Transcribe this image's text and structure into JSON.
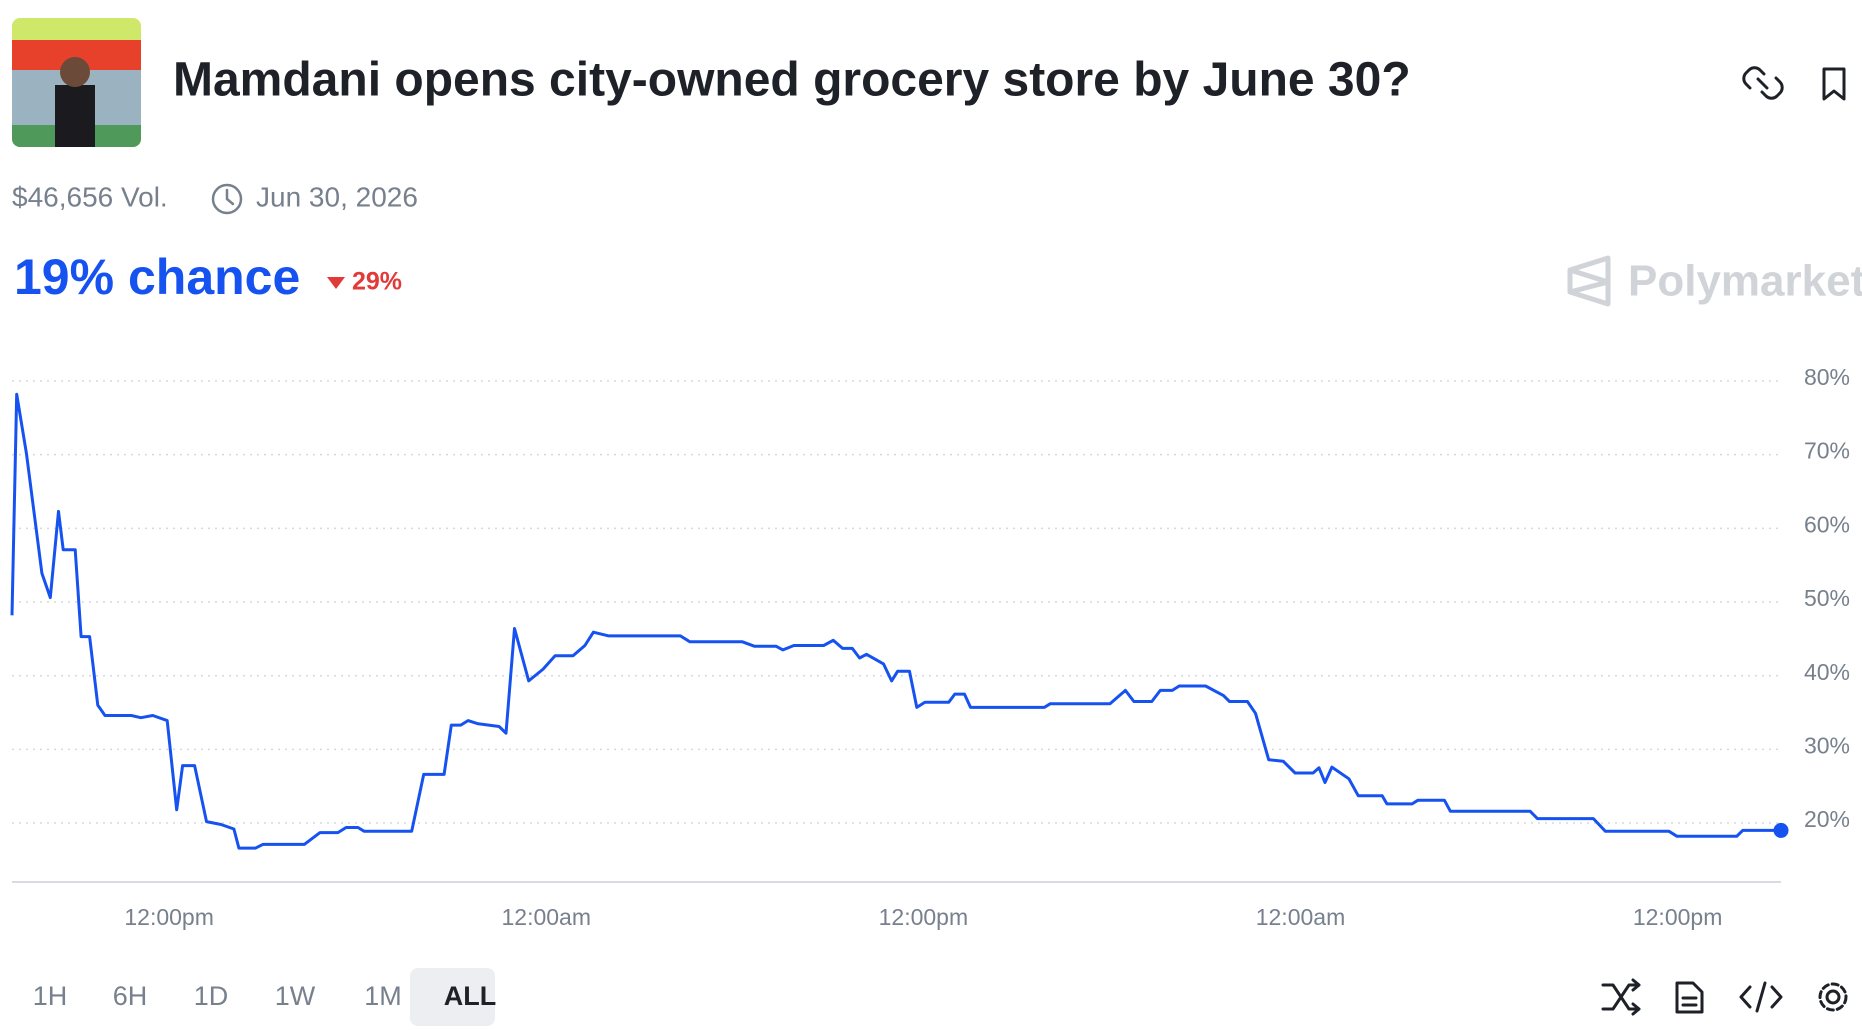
{
  "header": {
    "title": "Mamdani opens city-owned grocery store by June 30?",
    "volume": "$46,656 Vol.",
    "end_date": "Jun 30, 2026"
  },
  "headline": {
    "chance": "19% chance",
    "change": "29%"
  },
  "brand": "Polymarket",
  "ranges": [
    "1H",
    "6H",
    "1D",
    "1W",
    "1M",
    "ALL"
  ],
  "selected_range": "ALL",
  "chart_data": {
    "type": "line",
    "color": "#1652f0",
    "x": [
      7.0,
      7.15,
      7.46,
      7.95,
      8.22,
      8.48,
      8.63,
      9.01,
      9.2,
      9.47,
      9.73,
      9.96,
      10.8,
      11.1,
      11.48,
      11.94,
      12.24,
      12.43,
      12.81,
      13.19,
      13.65,
      14.06,
      14.22,
      14.75,
      14.98,
      16.3,
      16.8,
      17.37,
      17.63,
      18.01,
      18.2,
      19.72,
      20.1,
      20.75,
      20.98,
      21.28,
      21.51,
      21.81,
      22.5,
      22.72,
      22.99,
      23.44,
      23.9,
      24.28,
      24.85,
      25.23,
      25.5,
      25.99,
      28.27,
      28.57,
      30.24,
      30.62,
      31.31,
      31.53,
      31.88,
      32.83,
      33.13,
      33.43,
      33.74,
      33.97,
      34.19,
      34.73,
      34.99,
      35.18,
      35.56,
      35.79,
      36.05,
      36.81,
      37.0,
      37.31,
      37.5,
      39.85,
      40.04,
      41.94,
      42.43,
      42.7,
      43.27,
      43.54,
      43.92,
      44.14,
      44.98,
      45.55,
      45.74,
      46.31,
      46.57,
      46.99,
      47.45,
      47.83,
      48.4,
      48.59,
      48.78,
      49.0,
      49.54,
      49.84,
      50.6,
      50.75,
      51.55,
      51.74,
      52.58,
      52.77,
      55.31,
      55.54,
      57.32,
      57.7,
      59.72,
      59.98,
      61.88,
      62.07,
      63.29
    ],
    "values": [
      48.2,
      78.2,
      70.1,
      53.9,
      50.6,
      62.3,
      57.1,
      57.1,
      45.3,
      45.3,
      36.0,
      34.6,
      34.6,
      34.3,
      34.6,
      33.9,
      21.8,
      27.8,
      27.8,
      20.2,
      19.8,
      19.2,
      16.6,
      16.6,
      17.1,
      17.1,
      18.7,
      18.7,
      19.4,
      19.4,
      18.9,
      18.9,
      26.6,
      26.6,
      33.3,
      33.3,
      33.9,
      33.5,
      33.1,
      32.2,
      46.4,
      39.3,
      40.9,
      42.7,
      42.7,
      44.1,
      45.9,
      45.4,
      45.4,
      44.6,
      44.6,
      44.0,
      44.0,
      43.5,
      44.1,
      44.1,
      44.8,
      43.7,
      43.7,
      42.4,
      42.9,
      41.6,
      39.3,
      40.6,
      40.6,
      35.7,
      36.4,
      36.4,
      37.5,
      37.5,
      35.7,
      35.7,
      36.2,
      36.2,
      38.0,
      36.5,
      36.5,
      38.0,
      38.0,
      38.6,
      38.6,
      37.3,
      36.5,
      36.5,
      34.9,
      28.6,
      28.4,
      26.8,
      26.8,
      27.5,
      25.5,
      27.6,
      26.0,
      23.7,
      23.7,
      22.6,
      22.6,
      23.1,
      23.1,
      21.6,
      21.6,
      20.6,
      20.6,
      18.9,
      18.9,
      18.2,
      18.2,
      19,
      19
    ],
    "xlim": [
      7,
      63.29
    ],
    "xticks": [
      {
        "value": 12,
        "label": "12:00pm"
      },
      {
        "value": 24,
        "label": "12:00am"
      },
      {
        "value": 36,
        "label": "12:00pm"
      },
      {
        "value": 48,
        "label": "12:00am"
      },
      {
        "value": 60,
        "label": "12:00pm"
      }
    ],
    "ylim": [
      12,
      84
    ],
    "yticks": [
      {
        "value": 20,
        "label": "20%"
      },
      {
        "value": 30,
        "label": "30%"
      },
      {
        "value": 40,
        "label": "40%"
      },
      {
        "value": 50,
        "label": "50%"
      },
      {
        "value": 60,
        "label": "60%"
      },
      {
        "value": 70,
        "label": "70%"
      },
      {
        "value": 80,
        "label": "80%"
      }
    ],
    "grid": true
  }
}
